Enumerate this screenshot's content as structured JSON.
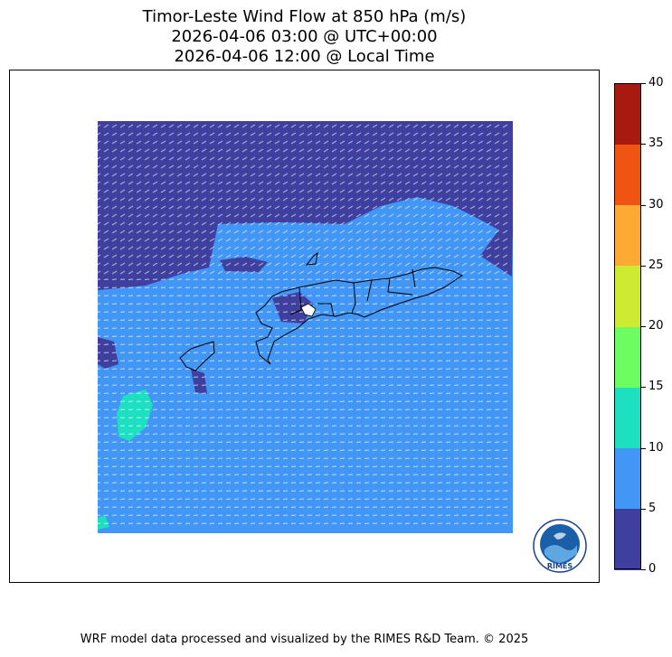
{
  "title": {
    "line1": "Timor-Leste Wind Flow at 850 hPa (m/s)",
    "line2": "2026-04-06 03:00 @ UTC+00:00",
    "line3": "2026-04-06 12:00 @ Local Time"
  },
  "colorbar": {
    "levels": [
      0,
      5,
      10,
      15,
      20,
      25,
      30,
      35,
      40
    ],
    "colors": [
      "#3f3f9f",
      "#4296f5",
      "#1de0c1",
      "#6efd60",
      "#cfea33",
      "#fdaa35",
      "#ef5412",
      "#a8190f"
    ],
    "tick_labels": [
      "0",
      "5",
      "10",
      "15",
      "20",
      "25",
      "30",
      "35",
      "40"
    ]
  },
  "map": {
    "region": "Timor-Leste",
    "level": "850 hPa",
    "units": "m/s",
    "wind_direction_dominant": "easterly"
  },
  "logo": {
    "text": "RIMES",
    "icon": "rimes-globe-logo"
  },
  "footer": {
    "credit": "WRF model data processed and visualized by the RIMES R&D Team. © 2025"
  }
}
